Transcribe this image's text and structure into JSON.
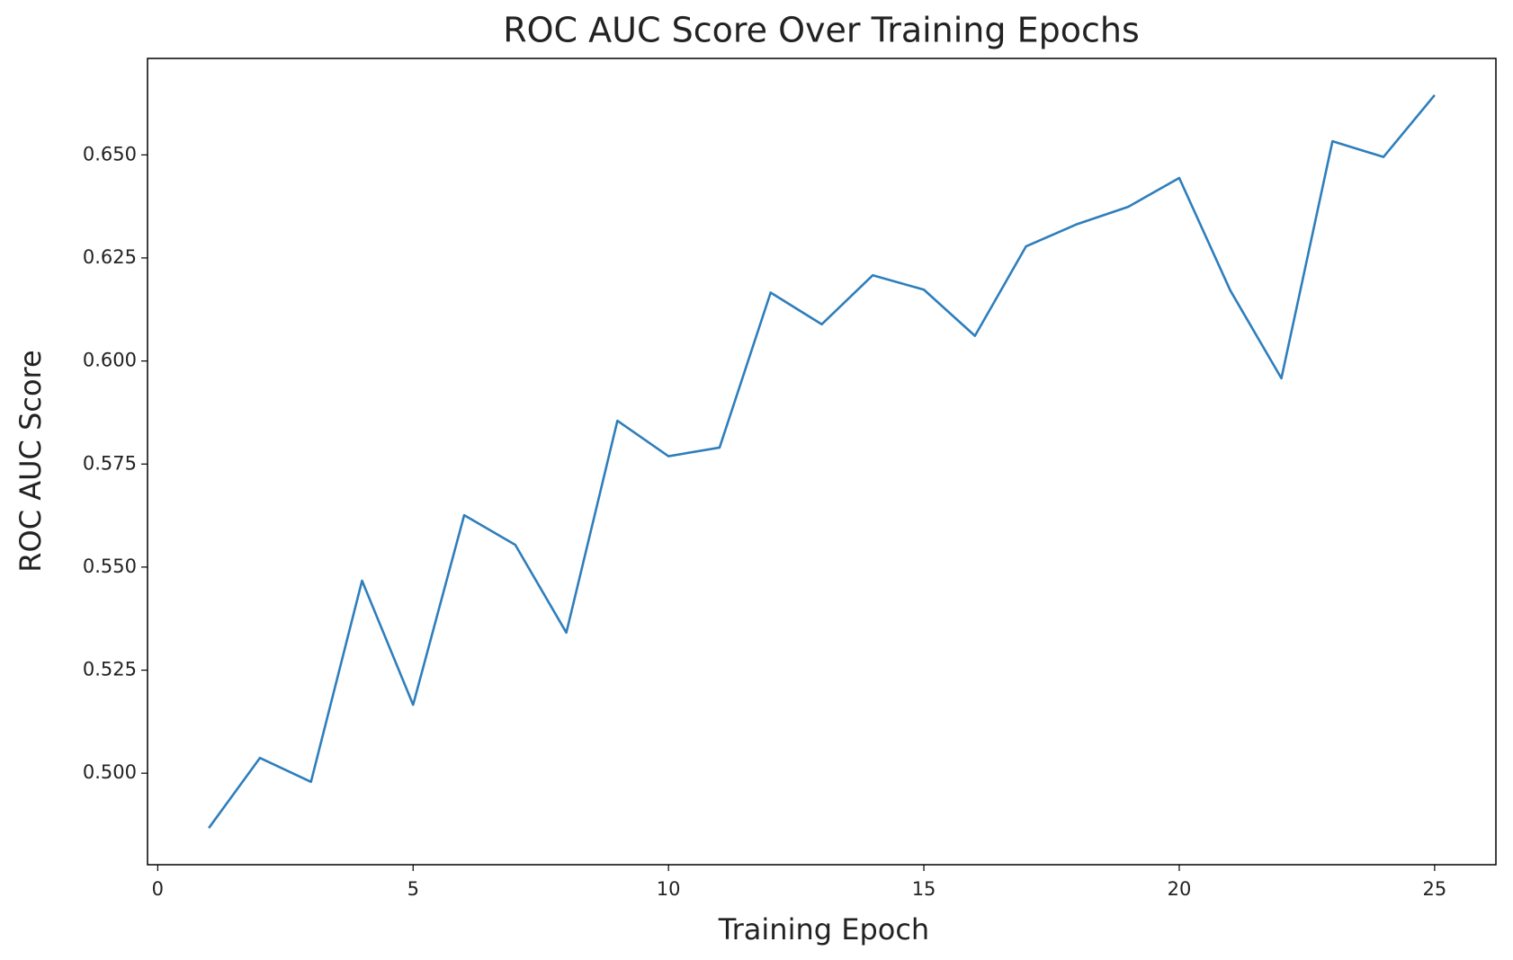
{
  "chart_data": {
    "type": "line",
    "title": "ROC AUC Score Over Training Epochs",
    "x_label": "Training Epoch",
    "y_label": "ROC AUC Score",
    "x": [
      1,
      2,
      3,
      4,
      5,
      6,
      7,
      8,
      9,
      10,
      11,
      12,
      13,
      14,
      15,
      16,
      17,
      18,
      19,
      20,
      21,
      22,
      23,
      24,
      25
    ],
    "values": [
      0.4867,
      0.5037,
      0.4979,
      0.5467,
      0.5166,
      0.5626,
      0.5554,
      0.5341,
      0.5855,
      0.5769,
      0.579,
      0.6166,
      0.6089,
      0.6208,
      0.6173,
      0.6061,
      0.6278,
      0.6332,
      0.6374,
      0.6444,
      0.6171,
      0.5958,
      0.6533,
      0.6495,
      0.6645
    ],
    "color": "#2e7ebc",
    "xlim": [
      -0.2,
      26.2
    ],
    "xticks": [
      0,
      5,
      10,
      15,
      20,
      25
    ],
    "ylim": [
      0.4778,
      0.6734
    ],
    "yticks": [
      {
        "value": 0.5,
        "label": "0.500"
      },
      {
        "value": 0.525,
        "label": "0.525"
      },
      {
        "value": 0.55,
        "label": "0.550"
      },
      {
        "value": 0.575,
        "label": "0.575"
      },
      {
        "value": 0.6,
        "label": "0.600"
      },
      {
        "value": 0.625,
        "label": "0.625"
      },
      {
        "value": 0.65,
        "label": "0.650"
      }
    ],
    "grid": false
  }
}
